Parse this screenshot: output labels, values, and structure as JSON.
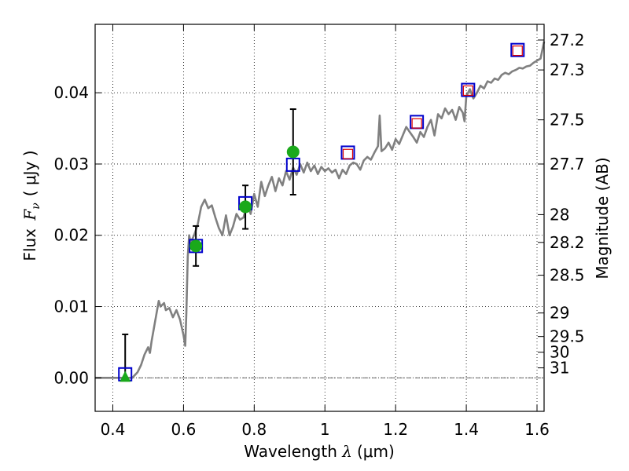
{
  "chart_data": {
    "type": "scatter",
    "xlabel_prefix": "Wavelength ",
    "xlabel_var": "λ",
    "xlabel_unit": "(μm)",
    "ylabel_prefix": "Flux ",
    "ylabel_var": "F",
    "ylabel_sub": "ν",
    "ylabel_unit": "( μJy )",
    "y2label": "Magnitude (AB)",
    "xlim": [
      0.35,
      1.62
    ],
    "ylim": [
      -0.0047,
      0.0496
    ],
    "grid": true,
    "x_ticks": [
      {
        "value": 0.4,
        "label": "0.4"
      },
      {
        "value": 0.6,
        "label": "0.6"
      },
      {
        "value": 0.8,
        "label": "0.8"
      },
      {
        "value": 1.0,
        "label": "1"
      },
      {
        "value": 1.2,
        "label": "1.2"
      },
      {
        "value": 1.4,
        "label": "1.4"
      },
      {
        "value": 1.6,
        "label": "1.6"
      }
    ],
    "y_ticks": [
      {
        "value": 0.0,
        "label": "0.00"
      },
      {
        "value": 0.01,
        "label": "0.01"
      },
      {
        "value": 0.02,
        "label": "0.02"
      },
      {
        "value": 0.03,
        "label": "0.03"
      },
      {
        "value": 0.04,
        "label": "0.04"
      }
    ],
    "mag_ticks": [
      {
        "value": 0.0474,
        "label": "27.2"
      },
      {
        "value": 0.0432,
        "label": "27.3"
      },
      {
        "value": 0.0362,
        "label": "27.5"
      },
      {
        "value": 0.03,
        "label": "27.7"
      },
      {
        "value": 0.0229,
        "label": "28"
      },
      {
        "value": 0.019,
        "label": "28.2"
      },
      {
        "value": 0.0144,
        "label": "28.5"
      },
      {
        "value": 0.0091,
        "label": "29"
      },
      {
        "value": 0.0058,
        "label": "29.5"
      },
      {
        "value": 0.0036,
        "label": "30"
      },
      {
        "value": 0.0014,
        "label": "31"
      }
    ],
    "spectrum_model": {
      "color": "#808080",
      "x": [
        0.35,
        0.42,
        0.445,
        0.455,
        0.47,
        0.48,
        0.49,
        0.5,
        0.505,
        0.51,
        0.52,
        0.53,
        0.535,
        0.545,
        0.55,
        0.56,
        0.57,
        0.58,
        0.59,
        0.6,
        0.605,
        0.608,
        0.612,
        0.616,
        0.62,
        0.63,
        0.64,
        0.65,
        0.66,
        0.67,
        0.68,
        0.69,
        0.7,
        0.71,
        0.72,
        0.73,
        0.74,
        0.75,
        0.76,
        0.77,
        0.78,
        0.79,
        0.8,
        0.81,
        0.82,
        0.83,
        0.84,
        0.85,
        0.86,
        0.87,
        0.88,
        0.89,
        0.9,
        0.91,
        0.92,
        0.93,
        0.94,
        0.95,
        0.96,
        0.97,
        0.98,
        0.99,
        1.0,
        1.01,
        1.02,
        1.03,
        1.04,
        1.05,
        1.06,
        1.07,
        1.08,
        1.09,
        1.1,
        1.11,
        1.12,
        1.13,
        1.14,
        1.15,
        1.155,
        1.16,
        1.17,
        1.18,
        1.19,
        1.2,
        1.21,
        1.22,
        1.23,
        1.24,
        1.25,
        1.26,
        1.27,
        1.28,
        1.29,
        1.3,
        1.31,
        1.32,
        1.33,
        1.34,
        1.35,
        1.36,
        1.37,
        1.38,
        1.39,
        1.395,
        1.4,
        1.41,
        1.42,
        1.43,
        1.44,
        1.45,
        1.46,
        1.47,
        1.48,
        1.49,
        1.5,
        1.51,
        1.52,
        1.53,
        1.54,
        1.55,
        1.56,
        1.57,
        1.58,
        1.59,
        1.6,
        1.61,
        1.62
      ],
      "y": [
        0.0,
        0.0,
        0.0,
        0.0,
        0.0008,
        0.0018,
        0.0033,
        0.0043,
        0.0035,
        0.0052,
        0.008,
        0.0108,
        0.01,
        0.0105,
        0.0095,
        0.0098,
        0.0085,
        0.0095,
        0.0082,
        0.006,
        0.0045,
        0.009,
        0.017,
        0.02,
        0.019,
        0.02,
        0.0215,
        0.024,
        0.025,
        0.0238,
        0.0242,
        0.0225,
        0.021,
        0.02,
        0.0228,
        0.02,
        0.0212,
        0.023,
        0.0222,
        0.0225,
        0.0245,
        0.023,
        0.0258,
        0.024,
        0.0275,
        0.0255,
        0.027,
        0.0282,
        0.0262,
        0.028,
        0.027,
        0.029,
        0.0278,
        0.0295,
        0.0285,
        0.03,
        0.0288,
        0.0302,
        0.029,
        0.0298,
        0.0286,
        0.0296,
        0.029,
        0.0294,
        0.0288,
        0.0292,
        0.028,
        0.0292,
        0.0286,
        0.0298,
        0.0302,
        0.03,
        0.0292,
        0.0305,
        0.031,
        0.0306,
        0.0316,
        0.0325,
        0.0368,
        0.0318,
        0.0322,
        0.033,
        0.032,
        0.0335,
        0.0328,
        0.034,
        0.0352,
        0.0345,
        0.0338,
        0.033,
        0.0345,
        0.0338,
        0.0352,
        0.0362,
        0.034,
        0.037,
        0.0364,
        0.0378,
        0.037,
        0.0376,
        0.0362,
        0.038,
        0.0372,
        0.036,
        0.0395,
        0.0405,
        0.0392,
        0.04,
        0.041,
        0.0406,
        0.0416,
        0.0414,
        0.042,
        0.0418,
        0.0425,
        0.0428,
        0.0426,
        0.043,
        0.0432,
        0.0435,
        0.0434,
        0.0437,
        0.0438,
        0.0442,
        0.0445,
        0.0448,
        0.0472
      ]
    },
    "observed_photometry": {
      "marker": "circle",
      "color": "#1aa91a",
      "points": [
        {
          "x": 0.435,
          "y": 0.0,
          "yerr_low": 0.0,
          "yerr_high": 0.0061
        },
        {
          "x": 0.635,
          "y": 0.0185,
          "yerr_low": 0.0157,
          "yerr_high": 0.0213
        },
        {
          "x": 0.775,
          "y": 0.024,
          "yerr_low": 0.0209,
          "yerr_high": 0.027
        },
        {
          "x": 0.91,
          "y": 0.0317,
          "yerr_low": 0.0257,
          "yerr_high": 0.0377
        }
      ]
    },
    "model_photometry": {
      "marker": "square",
      "color": "#0000cc",
      "points": [
        {
          "x": 0.435,
          "y": 0.0005
        },
        {
          "x": 0.635,
          "y": 0.0185
        },
        {
          "x": 0.775,
          "y": 0.0245
        },
        {
          "x": 0.91,
          "y": 0.0299
        },
        {
          "x": 1.065,
          "y": 0.0316
        },
        {
          "x": 1.26,
          "y": 0.0359
        },
        {
          "x": 1.405,
          "y": 0.0404
        },
        {
          "x": 1.545,
          "y": 0.046
        }
      ]
    },
    "predicted_photometry": {
      "marker": "square",
      "color": "#dd0000",
      "points": [
        {
          "x": 1.065,
          "y": 0.0314
        },
        {
          "x": 1.26,
          "y": 0.0357
        },
        {
          "x": 1.405,
          "y": 0.0403
        },
        {
          "x": 1.545,
          "y": 0.0459
        }
      ]
    }
  }
}
